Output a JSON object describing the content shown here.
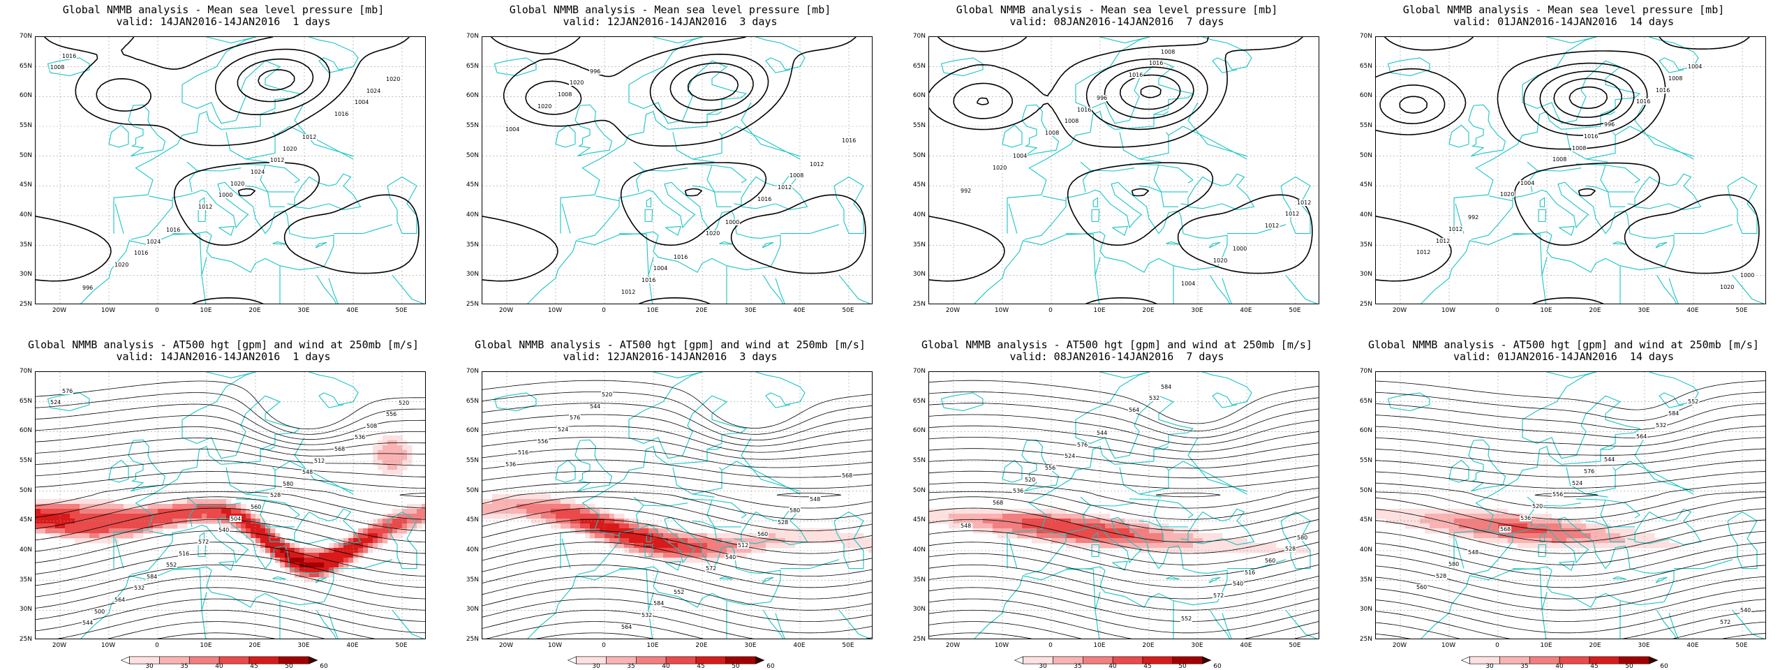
{
  "panels": [
    {
      "title": "Global NMMB analysis - Mean sea level pressure [mb]",
      "subtitle": "valid: 14JAN2016-14JAN2016  1 days",
      "kind": "mslp",
      "labels": [
        "1008",
        "1012",
        "1016",
        "1004",
        "1000",
        "996",
        "1012",
        "1016",
        "1020",
        "1024",
        "1020",
        "1016",
        "1012",
        "1016",
        "1020",
        "1024",
        "1024",
        "1020"
      ]
    },
    {
      "title": "Global NMMB analysis - Mean sea level pressure [mb]",
      "subtitle": "valid: 12JAN2016-14JAN2016  3 days",
      "kind": "mslp",
      "labels": [
        "1008",
        "1012",
        "1016",
        "1004",
        "1000",
        "996",
        "1012",
        "1016",
        "1020",
        "1016",
        "1012",
        "1016",
        "1020",
        "1020",
        "1008",
        "1004"
      ]
    },
    {
      "title": "Global NMMB analysis - Mean sea level pressure [mb]",
      "subtitle": "valid: 08JAN2016-14JAN2016  7 days",
      "kind": "mslp",
      "labels": [
        "1008",
        "1012",
        "1016",
        "1004",
        "1000",
        "996",
        "992",
        "1004",
        "1008",
        "1012",
        "1016",
        "1020",
        "1020",
        "1016",
        "1012",
        "1008"
      ]
    },
    {
      "title": "Global NMMB analysis - Mean sea level pressure [mb]",
      "subtitle": "valid: 01JAN2016-14JAN2016  14 days",
      "kind": "mslp",
      "labels": [
        "1008",
        "1012",
        "1016",
        "1004",
        "1000",
        "996",
        "992",
        "1004",
        "1008",
        "1012",
        "1016",
        "1020",
        "1020",
        "1016",
        "1012",
        "1008"
      ]
    },
    {
      "title": "Global NMMB analysis - AT500 hgt [gpm] and wind at 250mb [m/s]",
      "subtitle": "valid: 14JAN2016-14JAN2016  1 days",
      "kind": "z500",
      "labels": [
        "524",
        "528",
        "532",
        "536",
        "540",
        "544",
        "548",
        "552",
        "556",
        "560",
        "564",
        "568",
        "572",
        "576",
        "580",
        "584",
        "508",
        "504",
        "500",
        "512",
        "516",
        "520"
      ]
    },
    {
      "title": "Global NMMB analysis - AT500 hgt [gpm] and wind at 250mb [m/s]",
      "subtitle": "valid: 12JAN2016-14JAN2016  3 days",
      "kind": "z500",
      "labels": [
        "524",
        "528",
        "532",
        "536",
        "540",
        "544",
        "548",
        "552",
        "556",
        "560",
        "564",
        "568",
        "572",
        "576",
        "580",
        "584",
        "516",
        "512",
        "520"
      ]
    },
    {
      "title": "Global NMMB analysis - AT500 hgt [gpm] and wind at 250mb [m/s]",
      "subtitle": "valid: 08JAN2016-14JAN2016  7 days",
      "kind": "z500",
      "labels": [
        "524",
        "528",
        "532",
        "536",
        "540",
        "544",
        "548",
        "552",
        "556",
        "560",
        "564",
        "568",
        "572",
        "576",
        "580",
        "584",
        "520",
        "516"
      ]
    },
    {
      "title": "Global NMMB analysis - AT500 hgt [gpm] and wind at 250mb [m/s]",
      "subtitle": "valid: 01JAN2016-14JAN2016  14 days",
      "kind": "z500",
      "labels": [
        "524",
        "528",
        "532",
        "536",
        "540",
        "544",
        "548",
        "552",
        "556",
        "560",
        "564",
        "568",
        "572",
        "576",
        "580",
        "584",
        "520"
      ]
    }
  ],
  "lat_labels": [
    "70N",
    "65N",
    "60N",
    "55N",
    "50N",
    "45N",
    "40N",
    "35N",
    "30N",
    "25N"
  ],
  "lon_labels": [
    "20W",
    "10W",
    "0",
    "10E",
    "20E",
    "30E",
    "40E",
    "50E"
  ],
  "colorbar": {
    "ticks": [
      "30",
      "35",
      "40",
      "45",
      "50",
      "60"
    ],
    "colors": [
      "#ffffff",
      "#fde0e0",
      "#f9b3b3",
      "#f27f7f",
      "#ea4a4a",
      "#d91a1a",
      "#a30000",
      "#3a0000"
    ]
  },
  "colors": {
    "coast": "#19c4c4",
    "contour": "#000000",
    "grid": "#9a9a9a"
  }
}
